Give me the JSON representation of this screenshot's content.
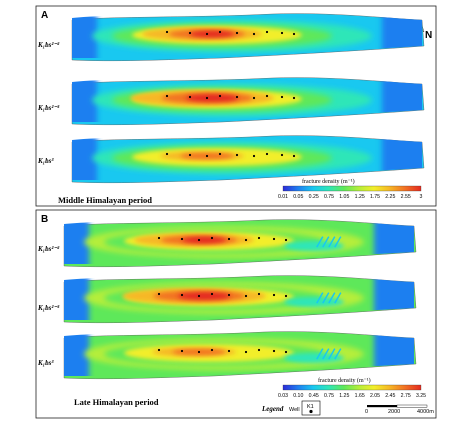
{
  "panels": [
    {
      "letter": "A",
      "period": "Middle Himalayan period",
      "layers": [
        {
          "label": "K₁bs²⁻²"
        },
        {
          "label": "K₁bs²⁻³"
        },
        {
          "label": "K₁bs³"
        }
      ],
      "colorbar": {
        "title": "fracture density (m⁻¹)",
        "ticks": [
          "0.01",
          "0.05",
          "0.25",
          "0.75",
          "1.05",
          "1.25",
          "1.75",
          "2.25",
          "2.55",
          "3"
        ]
      }
    },
    {
      "letter": "B",
      "period": "Late Himalayan period",
      "layers": [
        {
          "label": "K₁bs²⁻²"
        },
        {
          "label": "K₁bs²⁻³"
        },
        {
          "label": "K₁bs³"
        }
      ],
      "colorbar": {
        "title": "fracture density (m⁻¹)",
        "ticks": [
          "0.03",
          "0.10",
          "0.45",
          "0.75",
          "1.25",
          "1.65",
          "2.05",
          "2.45",
          "2.75",
          "3.25"
        ]
      }
    }
  ],
  "north_label": "N",
  "legend": {
    "title": "Legend",
    "well_label": "Well",
    "well_id": "K1"
  },
  "scale_bar": {
    "ticks": [
      "0",
      "2000",
      "4000m"
    ]
  },
  "colors": {
    "ramp": [
      "#2d2bd8",
      "#1f7ff0",
      "#19c8f0",
      "#2ee6b8",
      "#5ee85a",
      "#b5ee3a",
      "#f2ee2a",
      "#f6b825",
      "#f27324",
      "#e42a20"
    ]
  }
}
